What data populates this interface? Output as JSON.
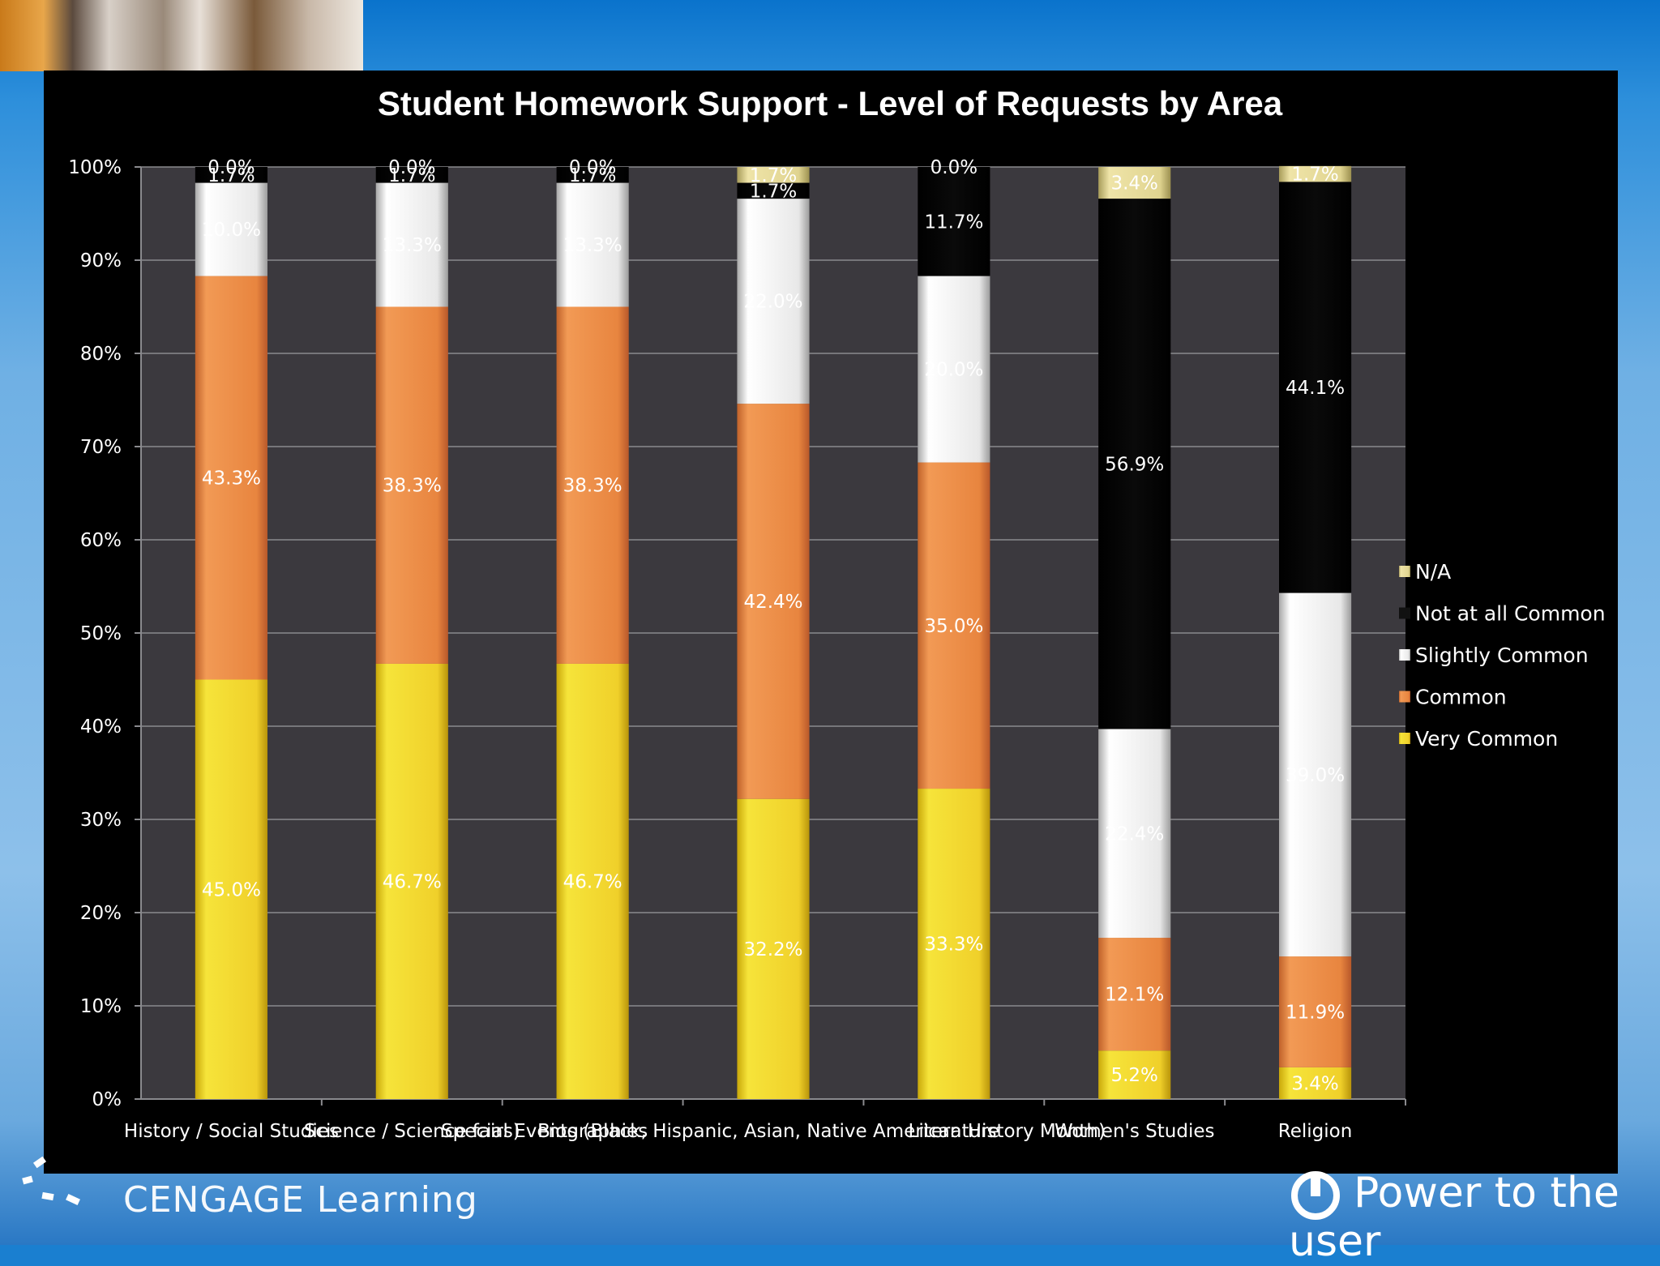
{
  "branding": {
    "company": "CENGAGE Learning",
    "tagline": "Power to the user"
  },
  "colors": {
    "na": "#d8cf8a",
    "not_at_all_common": "#000000",
    "slightly_common": "#e2e2e2",
    "common": "#e88a45",
    "very_common": "#f2d530",
    "plot_bg": "#3b393e",
    "panel_bg": "#000000"
  },
  "chart_data": {
    "type": "bar",
    "stacked": true,
    "percent": true,
    "title": "Student Homework Support - Level of Requests by Area",
    "xlabel": "",
    "ylabel": "",
    "ylim": [
      0,
      100
    ],
    "yticks": [
      "0%",
      "10%",
      "20%",
      "30%",
      "40%",
      "50%",
      "60%",
      "70%",
      "80%",
      "90%",
      "100%"
    ],
    "grid": true,
    "legend_position": "right",
    "categories": [
      "History / Social Studies",
      "Science / Science fairs)",
      "Biographies",
      "Special Events (Black, Hispanic, Asian, Native American History Month)",
      "Literature",
      "Women's Studies",
      "Religion"
    ],
    "series": [
      {
        "name": "Very Common",
        "values": [
          45.0,
          46.7,
          46.7,
          32.2,
          33.3,
          5.2,
          3.4
        ]
      },
      {
        "name": "Common",
        "values": [
          43.3,
          38.3,
          38.3,
          42.4,
          35.0,
          12.1,
          11.9
        ]
      },
      {
        "name": "Slightly Common",
        "values": [
          10.0,
          13.3,
          13.3,
          22.0,
          20.0,
          22.4,
          39.0
        ]
      },
      {
        "name": "Not at all Common",
        "values": [
          1.7,
          1.7,
          1.7,
          1.7,
          11.7,
          56.9,
          44.1
        ]
      },
      {
        "name": "N/A",
        "values": [
          0.0,
          0.0,
          0.0,
          1.7,
          0.0,
          3.4,
          1.7
        ]
      }
    ],
    "data_labels": [
      [
        "45.0%",
        "46.7%",
        "46.7%",
        "32.2%",
        "33.3%",
        "5.2%",
        "3.4%"
      ],
      [
        "43.3%",
        "38.3%",
        "38.3%",
        "42.4%",
        "35.0%",
        "12.1%",
        "11.9%"
      ],
      [
        "10.0%",
        "13.3%",
        "13.3%",
        "22.0%",
        "20.0%",
        "22.4%",
        "39.0%"
      ],
      [
        "1.7%",
        "1.7%",
        "1.7%",
        "1.7%",
        "11.7%",
        "56.9%",
        "44.1%"
      ],
      [
        "0.0%",
        "0.0%",
        "0.0%",
        "1.7%",
        "0.0%",
        "3.4%",
        "1.7%"
      ]
    ],
    "legend": [
      "N/A",
      "Not at all Common",
      "Slightly Common",
      "Common",
      "Very Common"
    ]
  }
}
